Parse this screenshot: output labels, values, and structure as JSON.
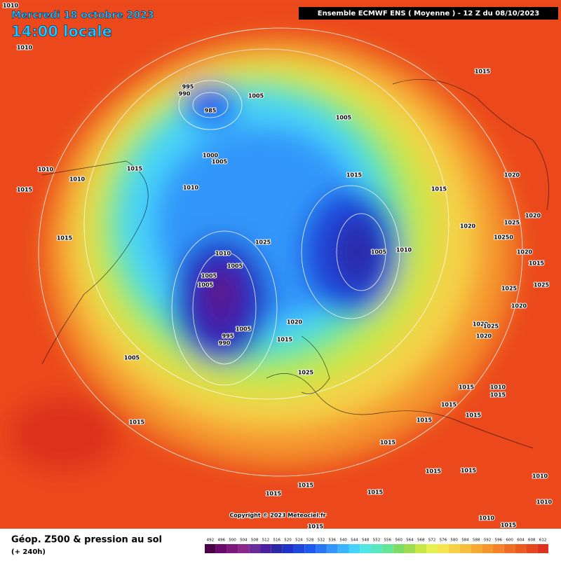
{
  "header": {
    "date": "Mercredi 18 octobre 2023",
    "time": "14:00 locale",
    "model": "Ensemble ECMWF ENS  ( Moyenne )  - 12 Z du 08/10/2023"
  },
  "isobar_labels": [
    1010,
    1010,
    1015,
    995,
    990,
    1005,
    985,
    1005,
    1000,
    1005,
    1010,
    1015,
    1015,
    1010,
    1010,
    1015,
    1015,
    1020,
    1020,
    1025,
    1020,
    1015,
    1025,
    10250,
    1020,
    1010,
    1005,
    1010,
    1005,
    1015,
    1005,
    1005,
    1025,
    1020,
    1025,
    1020,
    1020,
    1025,
    1020,
    1005,
    995,
    990,
    1015,
    1005,
    1025,
    1015,
    1010,
    1015,
    1015,
    1015,
    1015,
    1015,
    1015,
    1015,
    1015,
    1010,
    1015,
    1015,
    1015,
    1010,
    1015,
    1015,
    1010
  ],
  "copyright": "Copyright © 2023 Meteociel.fr",
  "footer": {
    "title": "Géop. Z500 & pression au sol",
    "lead": "(+ 240h)"
  },
  "colorbar": {
    "labels": [
      492,
      496,
      500,
      504,
      508,
      512,
      516,
      520,
      524,
      528,
      532,
      536,
      540,
      544,
      548,
      552,
      556,
      560,
      564,
      568,
      572,
      576,
      580,
      584,
      588,
      592,
      596,
      600,
      604,
      608,
      612
    ],
    "colors": [
      "#4b004b",
      "#6a0a6a",
      "#7d197d",
      "#8c288c",
      "#6b2b9b",
      "#4b1fa0",
      "#2a2aa8",
      "#1e32c8",
      "#1e46dc",
      "#1e5af0",
      "#2878f5",
      "#3296fa",
      "#3cb4fa",
      "#46d2fa",
      "#50e6e6",
      "#5ae6be",
      "#64e696",
      "#7ddc64",
      "#a0dc50",
      "#c8e646",
      "#e6f050",
      "#f5e650",
      "#f5d246",
      "#f5be3c",
      "#f5aa32",
      "#f5962d",
      "#f58228",
      "#f06e23",
      "#eb5a1e",
      "#e6461e",
      "#dc321e"
    ]
  }
}
